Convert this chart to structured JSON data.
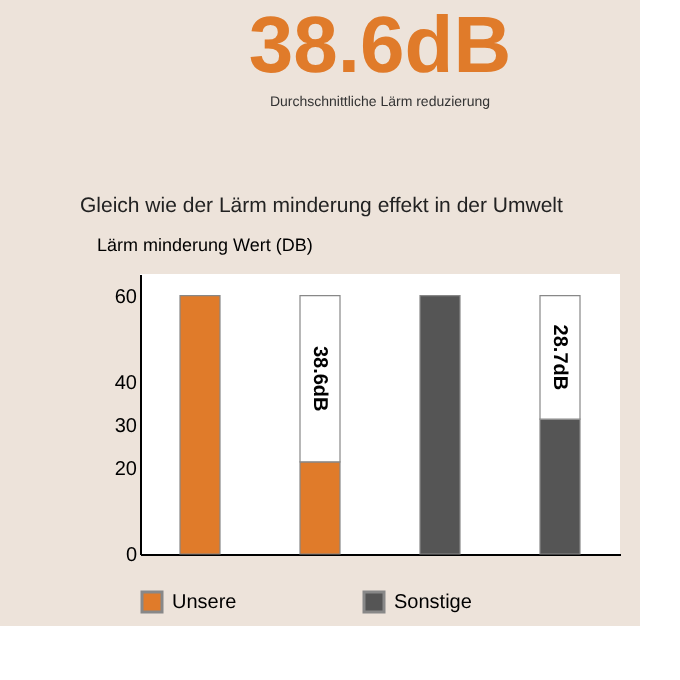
{
  "chart_data": {
    "type": "bar",
    "title": "38.6dB",
    "subtitle": "Durchschnittliche Lärm reduzierung",
    "annotations": [
      "Gleich wie der Lärm minderung effekt in der Umwelt"
    ],
    "ylabel": "Lärm minderung Wert (DB)",
    "categories": [
      null,
      null,
      null,
      null
    ],
    "stacked": true,
    "series": [
      {
        "name": "Unsere",
        "color": "#e07b2a",
        "values": [
          60,
          21.4,
          null,
          null
        ]
      },
      {
        "name": "Sonstige",
        "color": "#555555",
        "values": [
          null,
          null,
          60,
          31.3
        ]
      },
      {
        "color": "#ffffff",
        "values": [
          null,
          38.6,
          null,
          28.7
        ],
        "value_labels": [
          null,
          "38.6dB",
          null,
          "28.7dB"
        ]
      }
    ],
    "ylim": [
      0,
      65
    ],
    "yticks": [
      0,
      20,
      30,
      40,
      60
    ],
    "grid": false,
    "legend": "bottom",
    "tick_labels": "y"
  }
}
